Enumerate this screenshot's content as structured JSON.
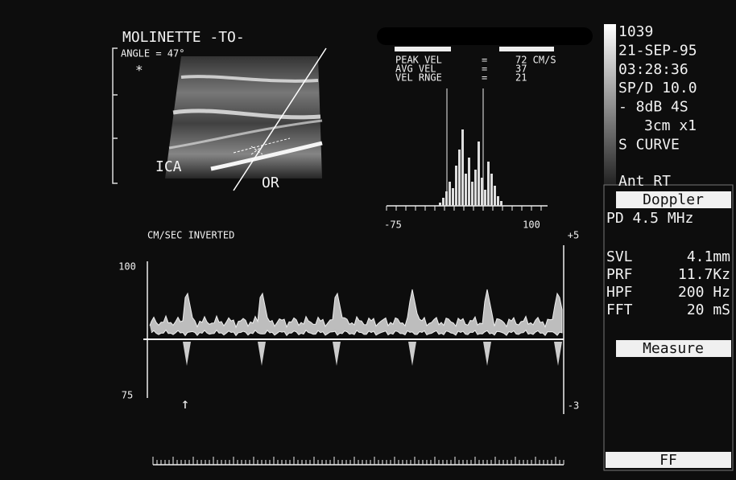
{
  "header": {
    "title": "MOLINETTE -TO-",
    "angle": "ANGLE = 47°",
    "marker": "*"
  },
  "image_labels": {
    "vessel": "ICA",
    "other": "OR"
  },
  "velocity": {
    "rows": [
      {
        "label": "PEAK VEL",
        "eq": "=",
        "value": "72 CM/S"
      },
      {
        "label": "AVG  VEL",
        "eq": "=",
        "value": "37"
      },
      {
        "label": "VEL RNGE",
        "eq": "=",
        "value": "21"
      }
    ]
  },
  "spectrum": {
    "axis_min": "-75",
    "axis_max": "100"
  },
  "waveform": {
    "title": "CM/SEC INVERTED",
    "top_left": "100",
    "bottom_left": "75",
    "top_right": "+5",
    "bottom_right": "-3",
    "arrow": "↑"
  },
  "panel": {
    "lines": [
      "1039",
      "21-SEP-95",
      "03:28:36",
      "SP/D 10.0",
      "- 8dB 4S",
      "3cm x1",
      "S CURVE"
    ],
    "location": "Ant RT",
    "mode": "Doppler",
    "probe": "PD 4.5 MHz",
    "settings": [
      {
        "label": "SVL",
        "value": "4.1mm"
      },
      {
        "label": "PRF",
        "value": "11.7Kz"
      },
      {
        "label": "HPF",
        "value": "200 Hz"
      },
      {
        "label": "FFT",
        "value": "20 mS"
      }
    ],
    "menu": "Measure",
    "footer": "FF"
  }
}
